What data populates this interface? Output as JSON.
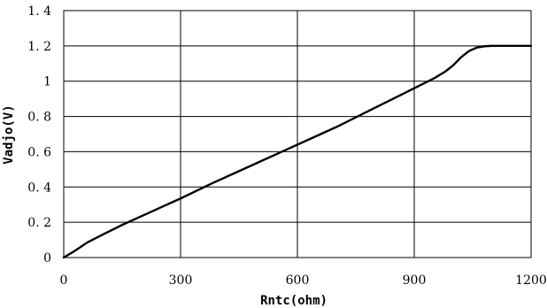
{
  "chart_data": {
    "type": "line",
    "title": "",
    "xlabel": "Rntc(ohm)",
    "ylabel": "Vadjo(V)",
    "xlim": [
      0,
      1200
    ],
    "ylim": [
      0,
      1.4
    ],
    "x_ticks": [
      0,
      300,
      600,
      900,
      1200
    ],
    "x_tick_labels": [
      "0",
      "300",
      "600",
      "900",
      "1200"
    ],
    "y_ticks": [
      0,
      0.2,
      0.4,
      0.6,
      0.8,
      1,
      1.2,
      1.4
    ],
    "y_tick_labels": [
      "0",
      "0. 2",
      "0. 4",
      "0. 6",
      "0. 8",
      "1",
      "1. 2",
      "1. 4"
    ],
    "grid": true,
    "legend": "none",
    "series": [
      {
        "color": "#000000",
        "x": [
          0,
          30,
          60,
          100,
          150,
          200,
          250,
          300,
          380,
          450,
          500,
          550,
          600,
          650,
          700,
          750,
          800,
          850,
          900,
          950,
          980,
          1000,
          1020,
          1040,
          1060,
          1080,
          1100,
          1150,
          1200
        ],
        "y": [
          0,
          0.04,
          0.085,
          0.13,
          0.185,
          0.235,
          0.285,
          0.335,
          0.42,
          0.49,
          0.54,
          0.59,
          0.64,
          0.69,
          0.74,
          0.795,
          0.85,
          0.905,
          0.96,
          1.015,
          1.055,
          1.09,
          1.135,
          1.17,
          1.19,
          1.198,
          1.2,
          1.2,
          1.2
        ]
      }
    ]
  }
}
